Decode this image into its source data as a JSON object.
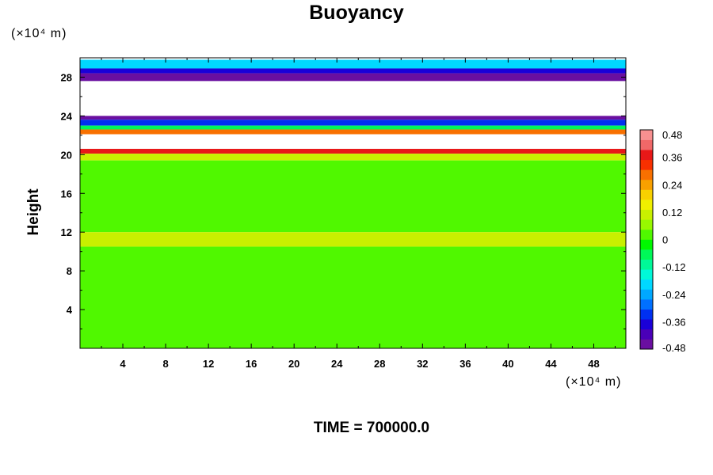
{
  "chart_data": {
    "type": "heatmap",
    "title": "Buoyancy",
    "ylabel": "Height",
    "xlabel": "",
    "x_unit": "(×10⁴ m)",
    "y_unit": "(×10⁴ m)",
    "footer": "TIME = 700000.0",
    "xlim": [
      0,
      51
    ],
    "ylim": [
      0,
      30
    ],
    "x_ticks": [
      4,
      8,
      12,
      16,
      20,
      24,
      28,
      32,
      36,
      40,
      44,
      48
    ],
    "y_ticks": [
      4,
      8,
      12,
      16,
      20,
      24,
      28
    ],
    "colorbar": {
      "range": [
        -0.48,
        0.48
      ],
      "ticks": [
        "0.48",
        "0.36",
        "0.24",
        "0.12",
        "0",
        "-0.12",
        "-0.24",
        "-0.36",
        "-0.48"
      ],
      "colors": [
        "#6a0fa0",
        "#4a00b8",
        "#1a00d8",
        "#0030f0",
        "#0070ff",
        "#00a8ff",
        "#00d8ff",
        "#00f8d8",
        "#00f898",
        "#00f858",
        "#00f800",
        "#50f800",
        "#98f800",
        "#c8f000",
        "#f0f000",
        "#f8d000",
        "#f8a000",
        "#f87000",
        "#f83000",
        "#e81818",
        "#f06868",
        "#f89090"
      ]
    },
    "layers": [
      {
        "name": "",
        "y_from": 29.8,
        "y_to": 28.9,
        "value": -0.18
      },
      {
        "name": "",
        "y_from": 28.9,
        "y_to": 28.4,
        "value": -0.36
      },
      {
        "name": "",
        "y_from": 28.4,
        "y_to": 27.6,
        "value": -0.46
      },
      {
        "name": "",
        "y_from": 24.0,
        "y_to": 23.6,
        "value": -0.44
      },
      {
        "name": "",
        "y_from": 23.6,
        "y_to": 23.0,
        "value": -0.32
      },
      {
        "name": "",
        "y_from": 23.0,
        "y_to": 22.6,
        "value": -0.06
      },
      {
        "name": "",
        "y_from": 22.6,
        "y_to": 22.1,
        "value": 0.28
      },
      {
        "name": "",
        "y_from": 22.1,
        "y_to": 20.6,
        "value": null
      },
      {
        "name": "",
        "y_from": 20.6,
        "y_to": 20.1,
        "value": 0.36
      },
      {
        "name": "",
        "y_from": 20.1,
        "y_to": 19.4,
        "value": 0.12
      },
      {
        "name": "",
        "y_from": 19.4,
        "y_to": 12.0,
        "value": 0.04
      },
      {
        "name": "",
        "y_from": 12.0,
        "y_to": 10.5,
        "value": 0.1
      },
      {
        "name": "",
        "y_from": 10.5,
        "y_to": 0,
        "value": 0.0
      }
    ]
  }
}
